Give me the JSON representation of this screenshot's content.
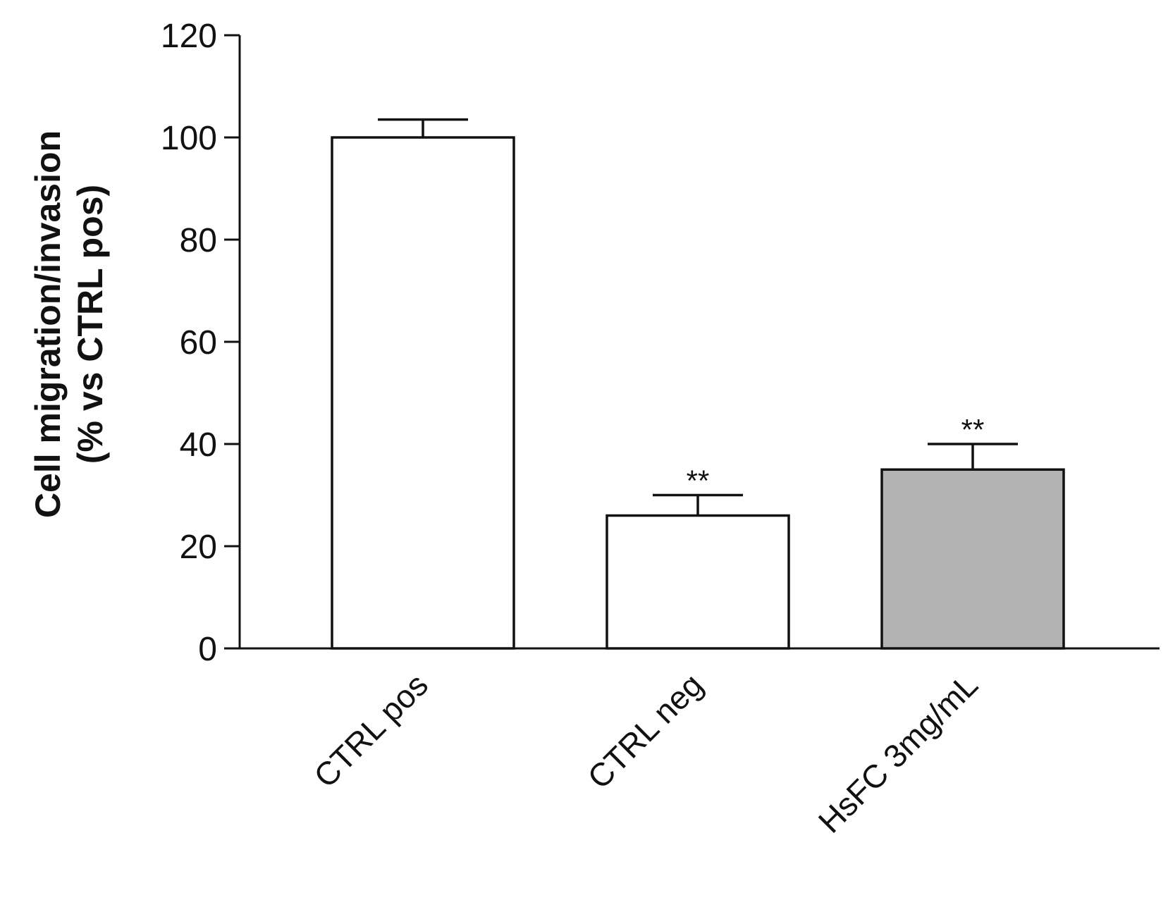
{
  "chart_data": {
    "type": "bar",
    "title": "",
    "xlabel": "",
    "ylabel_line1": "Cell migration/invasion",
    "ylabel_line2": "(% vs CTRL pos)",
    "ylim": [
      0,
      120
    ],
    "yticks": [
      0,
      20,
      40,
      60,
      80,
      100,
      120
    ],
    "categories": [
      "CTRL pos",
      "CTRL neg",
      "HsFC 3mg/mL"
    ],
    "values": [
      100,
      26,
      35
    ],
    "errors": [
      3.5,
      4,
      5
    ],
    "significance": [
      "",
      "**",
      "**"
    ],
    "bar_colors": [
      "#ffffff",
      "#ffffff",
      "#b3b3b3"
    ],
    "grid": false,
    "legend": "none"
  }
}
